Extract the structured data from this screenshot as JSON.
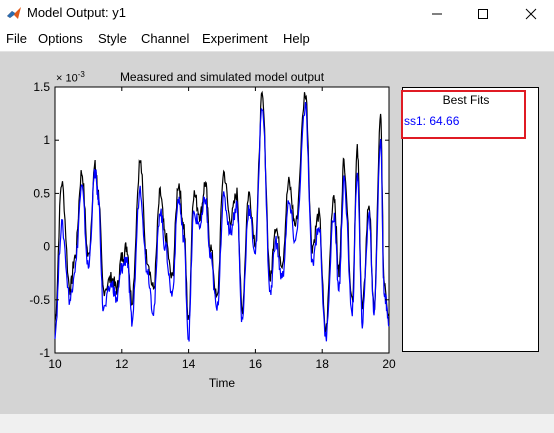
{
  "window": {
    "title": "Model Output: y1"
  },
  "menu": {
    "items": [
      "File",
      "Options",
      "Style",
      "Channel",
      "Experiment",
      "Help"
    ]
  },
  "best_fits": {
    "title": "Best Fits",
    "entry": "ss1: 64.66"
  },
  "colors": {
    "measured": "#000000",
    "simulated": "#0000ff",
    "highlight": "#e01b24",
    "figure_bg": "#d4d4d4"
  },
  "chart_data": {
    "type": "line",
    "title": "Measured and simulated model output",
    "xlabel": "Time",
    "ylabel": "",
    "y_exponent_label": "× 10",
    "y_exponent": "-3",
    "xlim": [
      10,
      20
    ],
    "ylim": [
      -1,
      1.5
    ],
    "x_ticks": [
      10,
      12,
      14,
      16,
      18,
      20
    ],
    "x_tick_labels": [
      "10",
      "12",
      "14",
      "16",
      "18",
      "20"
    ],
    "y_ticks": [
      -1,
      -0.5,
      0,
      0.5,
      1,
      1.5
    ],
    "y_tick_labels": [
      "-1",
      "-0.5",
      "0",
      "0.5",
      "1",
      "1.5"
    ],
    "series": [
      {
        "color": "#000000",
        "x": [
          10.0,
          10.2,
          10.45,
          10.6,
          10.8,
          11.0,
          11.2,
          11.3,
          11.45,
          11.7,
          11.85,
          12.0,
          12.15,
          12.3,
          12.55,
          12.75,
          12.95,
          13.15,
          13.3,
          13.5,
          13.7,
          13.85,
          14.0,
          14.15,
          14.35,
          14.5,
          14.65,
          14.85,
          15.05,
          15.25,
          15.45,
          15.6,
          15.8,
          16.0,
          16.2,
          16.45,
          16.6,
          16.8,
          17.0,
          17.2,
          17.5,
          17.7,
          17.9,
          18.1,
          18.35,
          18.5,
          18.65,
          18.9,
          19.05,
          19.2,
          19.4,
          19.55,
          19.75,
          19.85,
          20.0
        ],
        "y": [
          -0.7,
          0.6,
          -0.4,
          -0.1,
          0.7,
          -0.1,
          0.75,
          0.5,
          -0.4,
          -0.3,
          -0.4,
          -0.1,
          0.0,
          -0.5,
          0.8,
          -0.1,
          -0.4,
          0.5,
          0.1,
          -0.3,
          0.6,
          0.2,
          -0.7,
          0.5,
          0.3,
          0.6,
          0.0,
          -0.5,
          0.7,
          0.25,
          0.5,
          -0.6,
          0.5,
          0.05,
          1.4,
          -0.3,
          0.2,
          -0.15,
          0.6,
          0.2,
          1.45,
          0.0,
          0.3,
          -0.8,
          0.5,
          -0.25,
          0.8,
          -0.5,
          0.9,
          -0.6,
          0.4,
          -0.6,
          1.2,
          -0.3,
          -0.65
        ]
      },
      {
        "color": "#0000ff",
        "x": [
          10.0,
          10.2,
          10.45,
          10.6,
          10.8,
          11.0,
          11.2,
          11.3,
          11.45,
          11.7,
          11.85,
          12.0,
          12.15,
          12.3,
          12.55,
          12.75,
          12.95,
          13.15,
          13.3,
          13.5,
          13.7,
          13.85,
          14.0,
          14.15,
          14.35,
          14.5,
          14.65,
          14.85,
          15.05,
          15.25,
          15.45,
          15.6,
          15.8,
          16.0,
          16.2,
          16.45,
          16.6,
          16.8,
          17.0,
          17.2,
          17.5,
          17.7,
          17.9,
          18.1,
          18.35,
          18.5,
          18.65,
          18.9,
          19.05,
          19.2,
          19.4,
          19.55,
          19.75,
          19.85,
          20.0
        ],
        "y": [
          -0.8,
          0.2,
          -0.5,
          -0.2,
          0.55,
          -0.2,
          0.7,
          0.45,
          -0.6,
          -0.35,
          -0.5,
          -0.2,
          -0.1,
          -0.7,
          0.55,
          -0.2,
          -0.6,
          0.35,
          0.0,
          -0.45,
          0.45,
          0.1,
          -0.85,
          0.3,
          0.2,
          0.45,
          -0.1,
          -0.6,
          0.45,
          0.15,
          0.4,
          -0.7,
          0.35,
          -0.05,
          1.35,
          -0.45,
          0.05,
          -0.3,
          0.4,
          0.05,
          1.3,
          -0.15,
          0.2,
          -0.85,
          0.3,
          -0.4,
          0.6,
          -0.6,
          0.7,
          -0.7,
          0.3,
          -0.6,
          1.0,
          -0.4,
          -0.75
        ]
      }
    ]
  }
}
